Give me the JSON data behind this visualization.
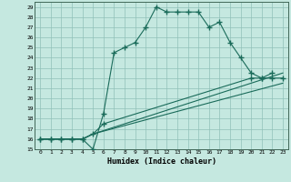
{
  "title": "",
  "xlabel": "Humidex (Indice chaleur)",
  "xlim": [
    -0.5,
    23.5
  ],
  "ylim": [
    15,
    29.5
  ],
  "xticks": [
    0,
    1,
    2,
    3,
    4,
    5,
    6,
    7,
    8,
    9,
    10,
    11,
    12,
    13,
    14,
    15,
    16,
    17,
    18,
    19,
    20,
    21,
    22,
    23
  ],
  "yticks": [
    15,
    16,
    17,
    18,
    19,
    20,
    21,
    22,
    23,
    24,
    25,
    26,
    27,
    28,
    29
  ],
  "bg_color": "#c5e8e0",
  "grid_color": "#90c0b8",
  "line_color": "#1a6b5a",
  "line1": [
    [
      0,
      16
    ],
    [
      1,
      16
    ],
    [
      2,
      16
    ],
    [
      3,
      16
    ],
    [
      4,
      16
    ],
    [
      5,
      15
    ],
    [
      6,
      18.5
    ],
    [
      7,
      24.5
    ],
    [
      8,
      25
    ],
    [
      9,
      25.5
    ],
    [
      10,
      27
    ],
    [
      11,
      29
    ],
    [
      12,
      28.5
    ],
    [
      13,
      28.5
    ],
    [
      14,
      28.5
    ],
    [
      15,
      28.5
    ],
    [
      16,
      27
    ],
    [
      17,
      27.5
    ],
    [
      18,
      25.5
    ],
    [
      19,
      24
    ],
    [
      20,
      22.5
    ],
    [
      21,
      22
    ],
    [
      22,
      22.5
    ]
  ],
  "line2": [
    [
      0,
      16
    ],
    [
      1,
      16
    ],
    [
      2,
      16
    ],
    [
      3,
      16
    ],
    [
      4,
      16
    ],
    [
      5,
      16.5
    ],
    [
      6,
      17.5
    ],
    [
      20,
      22
    ],
    [
      21,
      22
    ],
    [
      22,
      22
    ],
    [
      23,
      22
    ]
  ],
  "line3": [
    [
      0,
      16
    ],
    [
      1,
      16
    ],
    [
      2,
      16
    ],
    [
      3,
      16
    ],
    [
      4,
      16
    ],
    [
      5,
      16.5
    ],
    [
      23,
      22.5
    ]
  ],
  "line4": [
    [
      0,
      16
    ],
    [
      1,
      16
    ],
    [
      2,
      16
    ],
    [
      3,
      16
    ],
    [
      4,
      16
    ],
    [
      5,
      16.5
    ],
    [
      23,
      21.5
    ]
  ]
}
